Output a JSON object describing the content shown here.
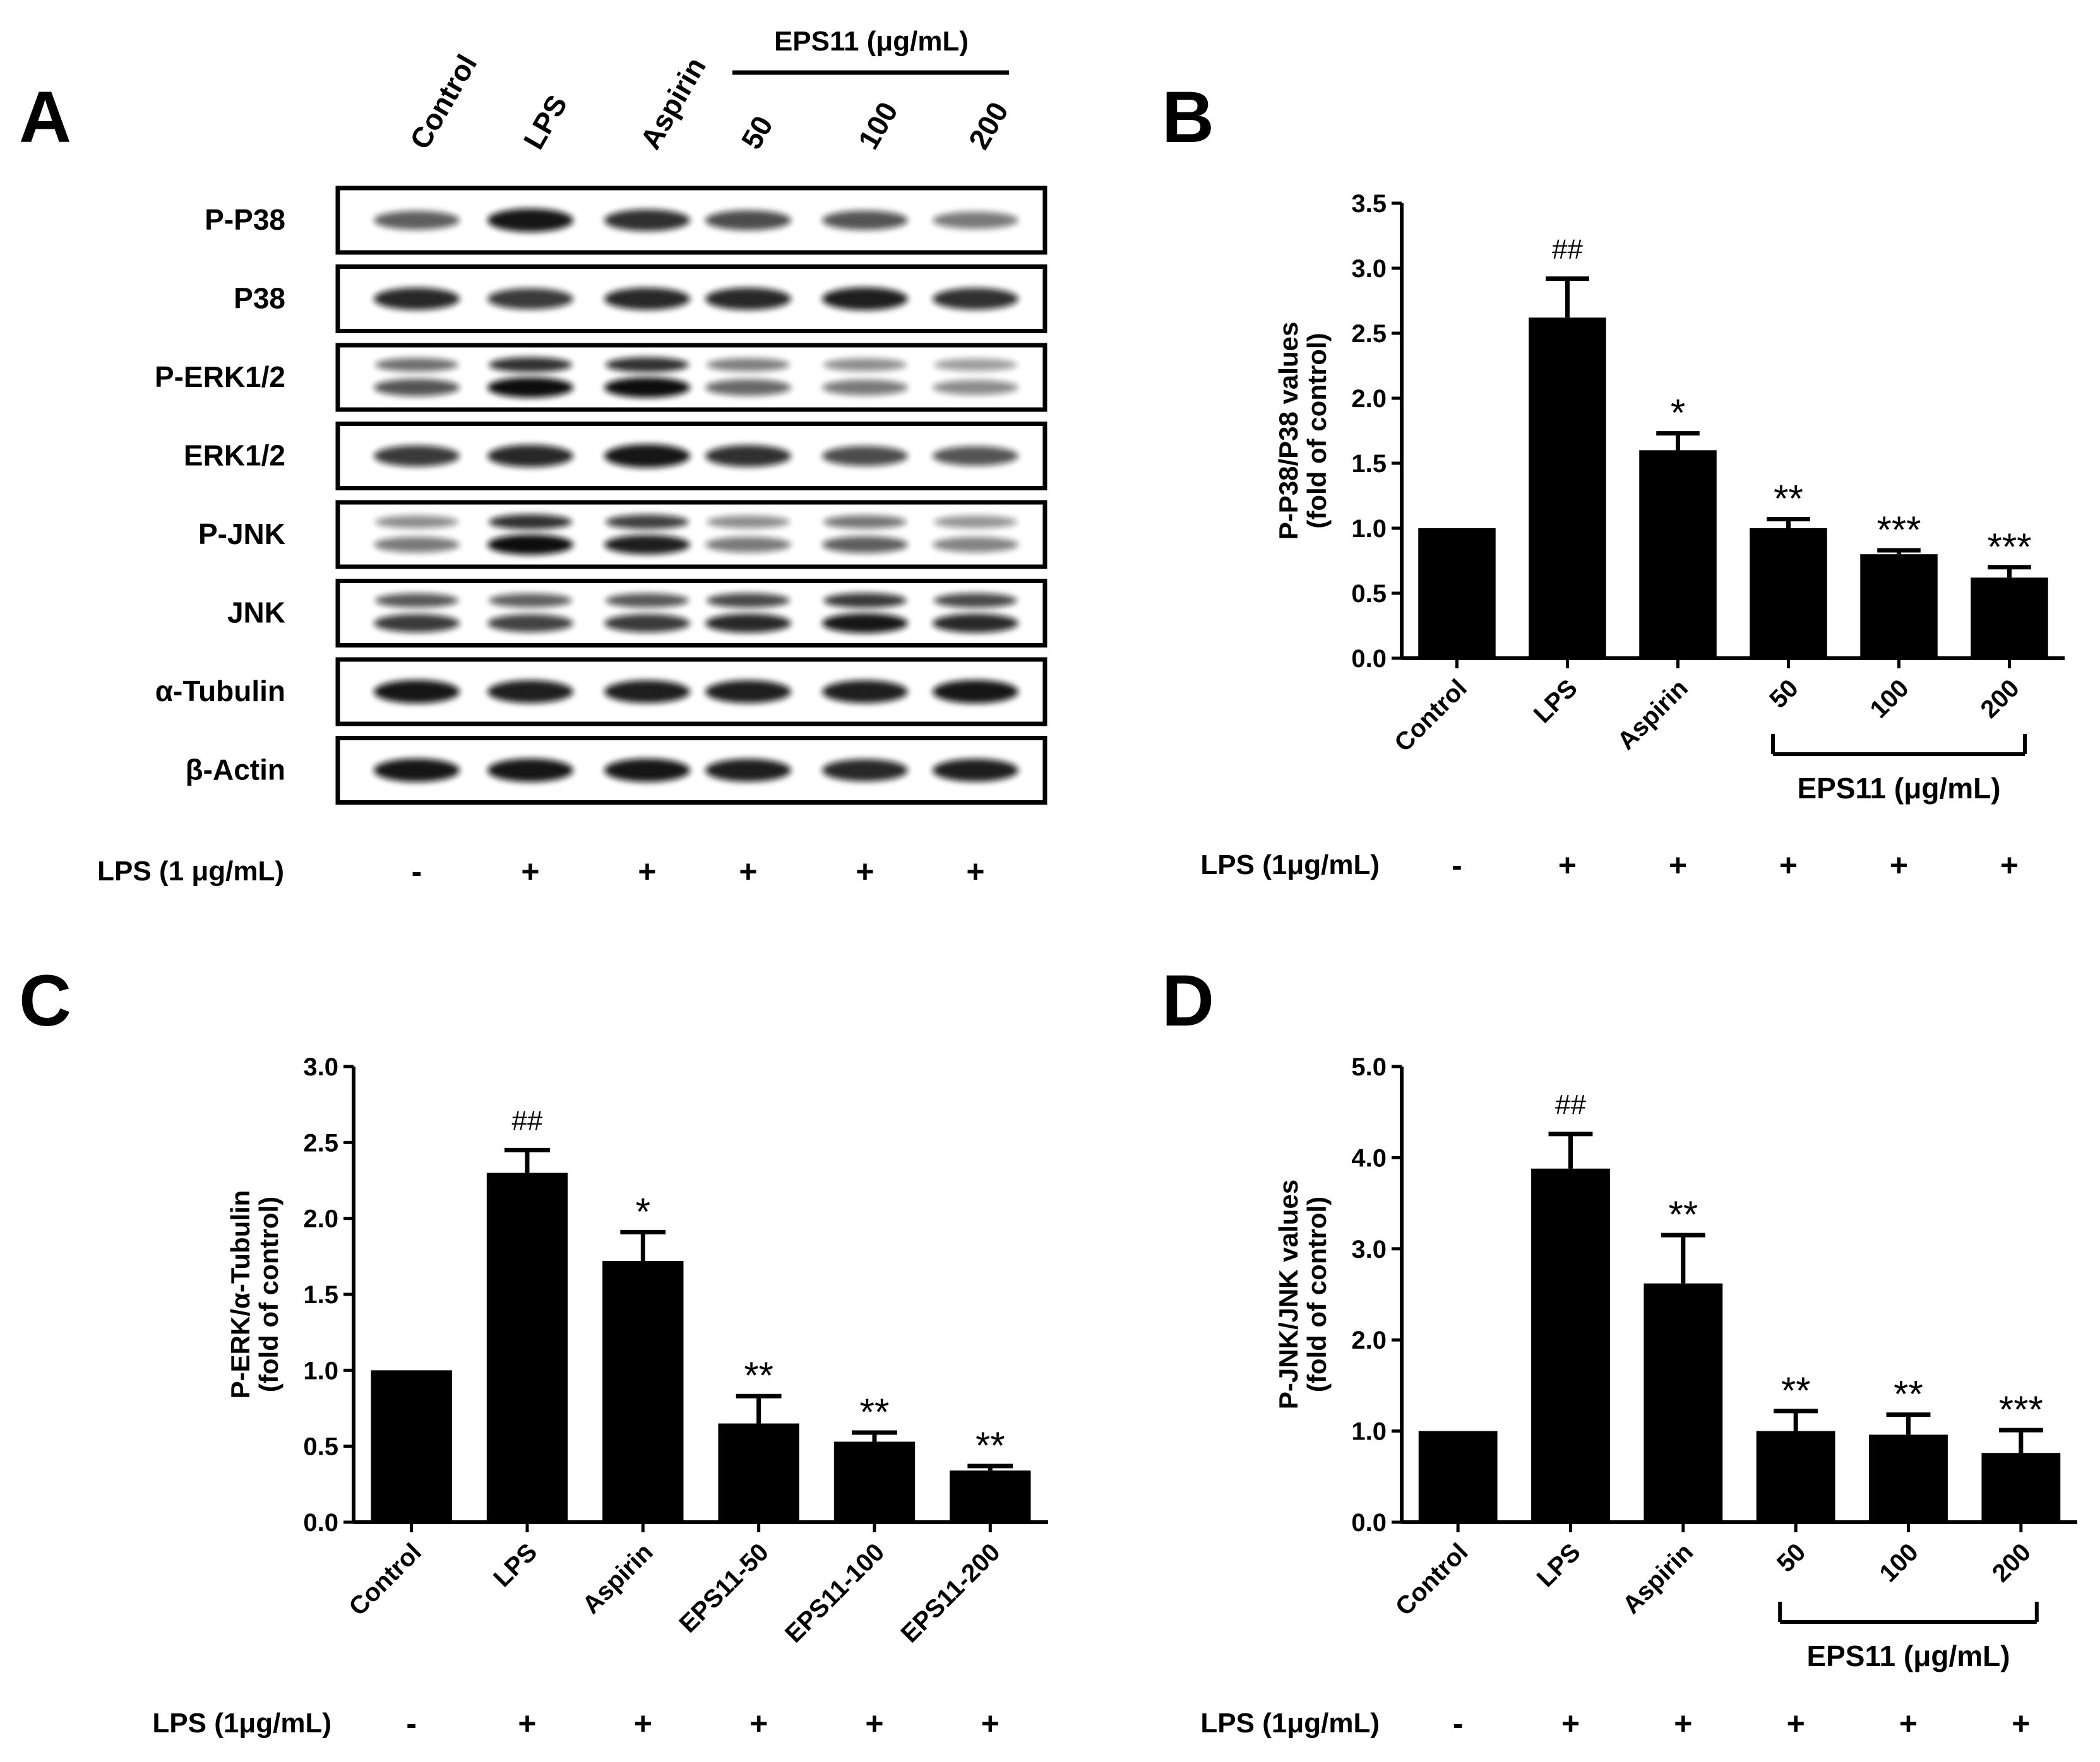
{
  "panels": {
    "A": {
      "letter": "A",
      "lane_labels": [
        "Control",
        "LPS",
        "Aspirin",
        "50",
        "100",
        "200"
      ],
      "eps_header": "EPS11 (μg/mL)",
      "row_labels": [
        "P-P38",
        "P38",
        "P-ERK1/2",
        "ERK1/2",
        "P-JNK",
        "JNK",
        "α-Tubulin",
        "β-Actin"
      ],
      "lps_label": "LPS (1 μg/mL)",
      "lps_signs": [
        "-",
        "+",
        "+",
        "+",
        "+",
        "+"
      ],
      "band_intensity": [
        [
          0.55,
          0.95,
          0.8,
          0.65,
          0.6,
          0.4
        ],
        [
          0.85,
          0.75,
          0.85,
          0.85,
          0.9,
          0.8
        ],
        [
          0.6,
          1.0,
          1.0,
          0.5,
          0.4,
          0.3
        ],
        [
          0.75,
          0.85,
          0.95,
          0.8,
          0.65,
          0.6
        ],
        [
          0.4,
          1.0,
          0.9,
          0.4,
          0.55,
          0.35
        ],
        [
          0.75,
          0.7,
          0.75,
          0.85,
          0.95,
          0.85
        ],
        [
          0.95,
          0.9,
          0.9,
          0.9,
          0.9,
          0.95
        ],
        [
          0.95,
          0.95,
          0.95,
          0.9,
          0.85,
          0.9
        ]
      ]
    },
    "B": {
      "letter": "B",
      "lps_label": "LPS (1μg/mL)",
      "lps_signs": [
        "-",
        "+",
        "+",
        "+",
        "+",
        "+"
      ],
      "bracket_label": "EPS11 (μg/mL)"
    },
    "C": {
      "letter": "C",
      "lps_label": "LPS (1μg/mL)",
      "lps_signs": [
        "-",
        "+",
        "+",
        "+",
        "+",
        "+"
      ]
    },
    "D": {
      "letter": "D",
      "lps_label": "LPS (1μg/mL)",
      "lps_signs": [
        "-",
        "+",
        "+",
        "+",
        "+",
        "+"
      ],
      "bracket_label": "EPS11 (μg/mL)"
    }
  },
  "chart_data": [
    {
      "type": "bar",
      "panel": "B",
      "title": "",
      "categories": [
        "Control",
        "LPS",
        "Aspirin",
        "50",
        "100",
        "200"
      ],
      "values": [
        1.0,
        2.62,
        1.6,
        1.0,
        0.8,
        0.62
      ],
      "errors": [
        0.0,
        0.3,
        0.13,
        0.07,
        0.03,
        0.08
      ],
      "significance": [
        "",
        "##",
        "*",
        "**",
        "***",
        "***"
      ],
      "ylabel_lines": [
        "P-P38/P38 values",
        "(fold of control)"
      ],
      "xlabel": "",
      "ylim": [
        0,
        3.5
      ],
      "yticks": [
        0,
        0.5,
        1.0,
        1.5,
        2.0,
        2.5,
        3.0,
        3.5
      ],
      "ytick_labels": [
        "0.0",
        "0.5",
        "1.0",
        "1.5",
        "2.0",
        "2.5",
        "3.0",
        "3.5"
      ]
    },
    {
      "type": "bar",
      "panel": "C",
      "title": "",
      "categories": [
        "Control",
        "LPS",
        "Aspirin",
        "EPS11-50",
        "EPS11-100",
        "EPS11-200"
      ],
      "values": [
        1.0,
        2.3,
        1.72,
        0.65,
        0.53,
        0.34
      ],
      "errors": [
        0.0,
        0.15,
        0.19,
        0.18,
        0.06,
        0.03
      ],
      "significance": [
        "",
        "##",
        "*",
        "**",
        "**",
        "**"
      ],
      "ylabel_lines": [
        "P-ERK/α-Tubulin",
        "(fold of control)"
      ],
      "xlabel": "",
      "ylim": [
        0,
        3.0
      ],
      "yticks": [
        0,
        0.5,
        1.0,
        1.5,
        2.0,
        2.5,
        3.0
      ],
      "ytick_labels": [
        "0.0",
        "0.5",
        "1.0",
        "1.5",
        "2.0",
        "2.5",
        "3.0"
      ]
    },
    {
      "type": "bar",
      "panel": "D",
      "title": "",
      "categories": [
        "Control",
        "LPS",
        "Aspirin",
        "50",
        "100",
        "200"
      ],
      "values": [
        1.0,
        3.88,
        2.62,
        1.0,
        0.96,
        0.76
      ],
      "errors": [
        0.0,
        0.38,
        0.53,
        0.22,
        0.22,
        0.25
      ],
      "significance": [
        "",
        "##",
        "**",
        "**",
        "**",
        "***"
      ],
      "ylabel_lines": [
        "P-JNK/JNK values",
        "(fold of control)"
      ],
      "xlabel": "",
      "ylim": [
        0,
        5.0
      ],
      "yticks": [
        0,
        1.0,
        2.0,
        3.0,
        4.0,
        5.0
      ],
      "ytick_labels": [
        "0.0",
        "1.0",
        "2.0",
        "3.0",
        "4.0",
        "5.0"
      ]
    }
  ]
}
